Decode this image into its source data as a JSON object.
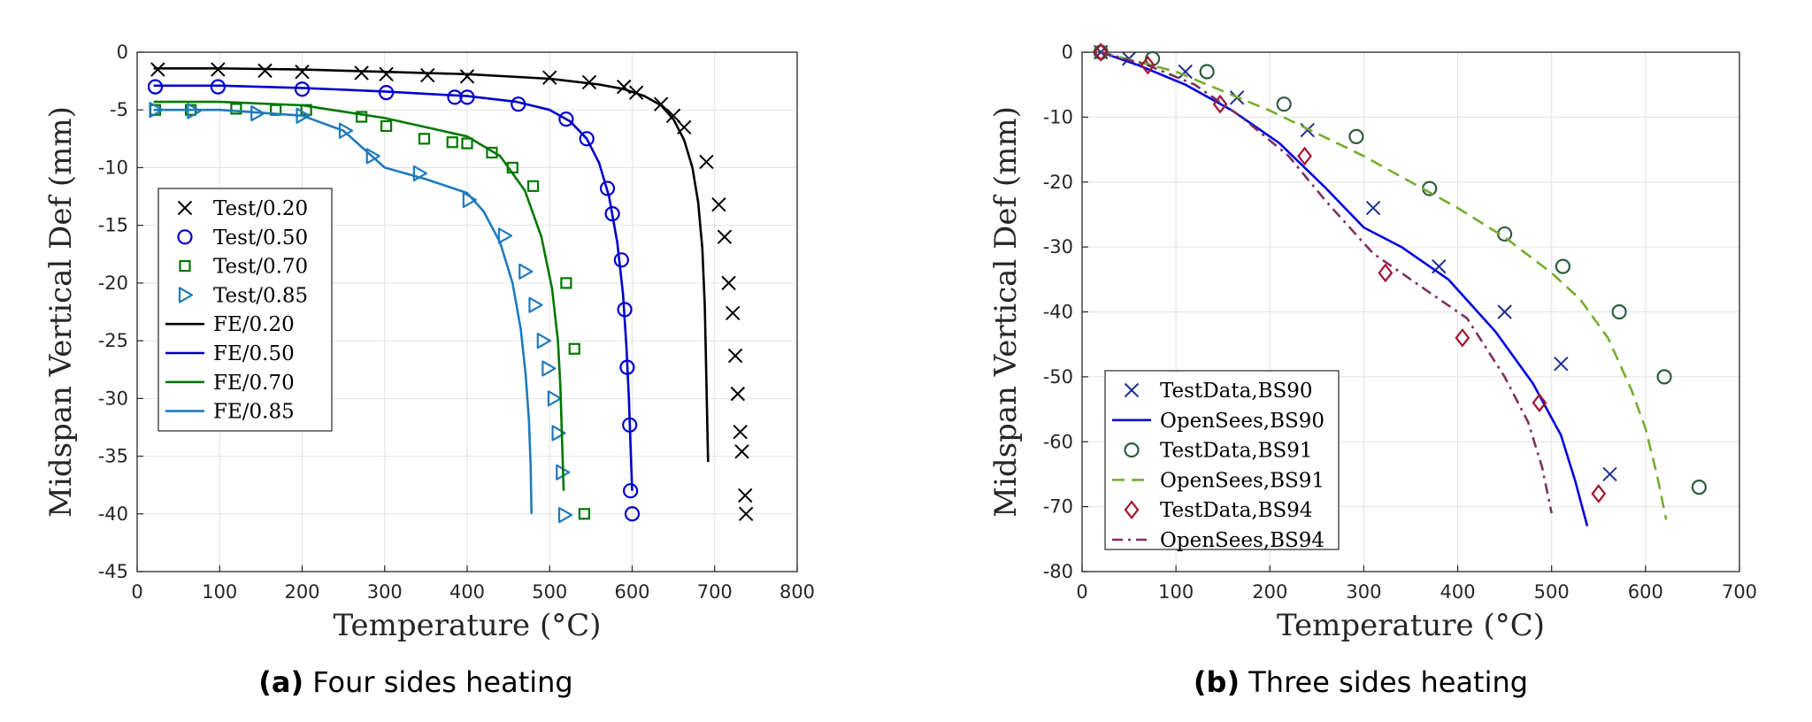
{
  "chart_data": [
    {
      "type": "line",
      "caption_tag": "(a)",
      "caption_text": "Four sides heating",
      "xlabel": "Temperature (°C)",
      "ylabel": "Midspan Vertical Def (mm)",
      "xlim": [
        0,
        800
      ],
      "ylim": [
        -45,
        0
      ],
      "xticks": [
        0,
        100,
        200,
        300,
        400,
        500,
        600,
        700,
        800
      ],
      "yticks": [
        0,
        -5,
        -10,
        -15,
        -20,
        -25,
        -30,
        -35,
        -40,
        -45
      ],
      "grid": true,
      "legend_position": "left",
      "series": [
        {
          "name": "Test/0.20",
          "kind": "marker",
          "marker": "x",
          "color": "#000000",
          "x": [
            25,
            98,
            155,
            200,
            272,
            302,
            352,
            400,
            500,
            548,
            590,
            605,
            635,
            650,
            663,
            690,
            705,
            712,
            717,
            722,
            725,
            728,
            731,
            733,
            737,
            738
          ],
          "y": [
            -1.5,
            -1.5,
            -1.6,
            -1.7,
            -1.8,
            -1.9,
            -2.0,
            -2.1,
            -2.2,
            -2.6,
            -3.0,
            -3.5,
            -4.5,
            -5.5,
            -6.5,
            -9.5,
            -13.2,
            -16.0,
            -20.0,
            -22.6,
            -26.3,
            -29.6,
            -32.9,
            -34.6,
            -38.4,
            -40.0
          ]
        },
        {
          "name": "Test/0.50",
          "kind": "marker",
          "marker": "o",
          "color": "#0000CC",
          "x": [
            22,
            98,
            200,
            302,
            385,
            400,
            462,
            520,
            545,
            570,
            576,
            587,
            591,
            594,
            597,
            598,
            600
          ],
          "y": [
            -3.0,
            -3.0,
            -3.2,
            -3.5,
            -3.9,
            -3.9,
            -4.5,
            -5.8,
            -7.5,
            -11.8,
            -14.0,
            -18.0,
            -22.3,
            -27.3,
            -32.3,
            -38.0,
            -40.0
          ]
        },
        {
          "name": "Test/0.70",
          "kind": "marker",
          "marker": "s",
          "color": "#007700",
          "x": [
            22,
            65,
            120,
            168,
            205,
            272,
            302,
            348,
            382,
            400,
            430,
            455,
            480,
            520,
            530,
            542
          ],
          "y": [
            -5.0,
            -5.0,
            -4.9,
            -5.0,
            -5.0,
            -5.6,
            -6.4,
            -7.5,
            -7.8,
            -7.9,
            -8.7,
            -10.0,
            -11.6,
            -20.0,
            -25.7,
            -40.0
          ]
        },
        {
          "name": "Test/0.85",
          "kind": "marker",
          "marker": ">",
          "color": "#1F7ABF",
          "x": [
            22,
            68,
            145,
            200,
            252,
            285,
            342,
            402,
            445,
            470,
            482,
            492,
            498,
            505,
            510,
            515,
            518
          ],
          "y": [
            -5.0,
            -5.1,
            -5.3,
            -5.5,
            -6.8,
            -9.0,
            -10.5,
            -12.8,
            -15.9,
            -19.0,
            -21.9,
            -25.0,
            -27.4,
            -30.0,
            -33.0,
            -36.4,
            -40.1
          ]
        },
        {
          "name": "FE/0.20",
          "kind": "line",
          "color": "#000000",
          "x": [
            20,
            100,
            200,
            300,
            400,
            500,
            560,
            590,
            615,
            635,
            650,
            663,
            673,
            680,
            685,
            688,
            690,
            692
          ],
          "y": [
            -1.4,
            -1.4,
            -1.5,
            -1.7,
            -1.9,
            -2.3,
            -2.8,
            -3.2,
            -3.8,
            -4.6,
            -5.8,
            -7.6,
            -10.0,
            -13.0,
            -17.0,
            -22.0,
            -28.5,
            -35.5
          ]
        },
        {
          "name": "FE/0.50",
          "kind": "line",
          "color": "#0000CC",
          "x": [
            20,
            100,
            200,
            300,
            400,
            460,
            500,
            525,
            545,
            560,
            572,
            582,
            589,
            593,
            596,
            598,
            600
          ],
          "y": [
            -2.9,
            -2.9,
            -3.1,
            -3.4,
            -3.8,
            -4.3,
            -5.0,
            -6.0,
            -7.5,
            -9.6,
            -12.5,
            -16.5,
            -21.0,
            -25.5,
            -30.0,
            -34.0,
            -38.0
          ]
        },
        {
          "name": "FE/0.70",
          "kind": "line",
          "color": "#007700",
          "x": [
            20,
            100,
            200,
            300,
            400,
            440,
            470,
            490,
            503,
            510,
            513,
            515,
            517
          ],
          "y": [
            -4.3,
            -4.3,
            -4.6,
            -5.7,
            -7.3,
            -9.0,
            -12.0,
            -16.0,
            -20.5,
            -25.0,
            -29.0,
            -33.5,
            -38.0
          ]
        },
        {
          "name": "FE/0.85",
          "kind": "line",
          "color": "#1F7ABF",
          "x": [
            20,
            100,
            200,
            250,
            300,
            350,
            400,
            420,
            440,
            455,
            465,
            471,
            475,
            477,
            478
          ],
          "y": [
            -5.0,
            -5.0,
            -5.5,
            -6.8,
            -10.0,
            -11.0,
            -12.2,
            -13.8,
            -16.5,
            -20.0,
            -24.0,
            -28.0,
            -32.0,
            -36.0,
            -40.0
          ]
        }
      ]
    },
    {
      "type": "line",
      "caption_tag": "(b)",
      "caption_text": "Three sides heating",
      "xlabel": "Temperature (°C)",
      "ylabel": "Midspan Vertical Def (mm)",
      "xlim": [
        0,
        700
      ],
      "ylim": [
        -80,
        0
      ],
      "xticks": [
        0,
        100,
        200,
        300,
        400,
        500,
        600,
        700
      ],
      "yticks": [
        0,
        -10,
        -20,
        -30,
        -40,
        -50,
        -60,
        -70,
        -80
      ],
      "grid": true,
      "legend_position": "bottom-left",
      "series": [
        {
          "name": "TestData,BS90",
          "kind": "marker",
          "marker": "x",
          "color": "#1F2F8F",
          "x": [
            20,
            50,
            110,
            165,
            240,
            310,
            380,
            450,
            510,
            562
          ],
          "y": [
            0,
            -1,
            -3,
            -7,
            -12,
            -24,
            -33,
            -40,
            -48,
            -65
          ]
        },
        {
          "name": "OpenSees,BS90",
          "kind": "line",
          "dash": "solid",
          "color": "#0000DD",
          "x": [
            20,
            60,
            110,
            160,
            210,
            260,
            300,
            340,
            390,
            440,
            480,
            510,
            525,
            538
          ],
          "y": [
            0,
            -2,
            -5,
            -9,
            -14,
            -21,
            -27,
            -30,
            -35,
            -43,
            -51,
            -59,
            -66,
            -73
          ]
        },
        {
          "name": "TestData,BS91",
          "kind": "marker",
          "marker": "o",
          "color": "#2E5E3E",
          "x": [
            20,
            75,
            133,
            215,
            292,
            370,
            450,
            512,
            572,
            620,
            657
          ],
          "y": [
            0,
            -1,
            -3,
            -8,
            -13,
            -21,
            -28,
            -33,
            -40,
            -50,
            -67
          ]
        },
        {
          "name": "OpenSees,BS91",
          "kind": "line",
          "dash": "dashed",
          "color": "#77AC30",
          "x": [
            20,
            100,
            200,
            300,
            400,
            450,
            500,
            530,
            560,
            585,
            600,
            612,
            622
          ],
          "y": [
            0,
            -3,
            -9,
            -16,
            -24,
            -28.5,
            -34,
            -38,
            -44,
            -52,
            -58,
            -65,
            -72
          ]
        },
        {
          "name": "TestData,BS94",
          "kind": "marker",
          "marker": "d",
          "color": "#A2142F",
          "x": [
            20,
            70,
            147,
            237,
            323,
            405,
            487,
            550
          ],
          "y": [
            0,
            -2,
            -8,
            -16,
            -34,
            -44,
            -54,
            -68
          ]
        },
        {
          "name": "OpenSees,BS94",
          "kind": "line",
          "dash": "dashdot",
          "color": "#7E2F5E",
          "x": [
            20,
            70,
            120,
            170,
            220,
            260,
            310,
            360,
            410,
            450,
            475,
            490,
            500
          ],
          "y": [
            0,
            -2,
            -5,
            -10,
            -16,
            -23,
            -31,
            -36,
            -41,
            -50,
            -57,
            -64,
            -71
          ]
        }
      ]
    }
  ]
}
